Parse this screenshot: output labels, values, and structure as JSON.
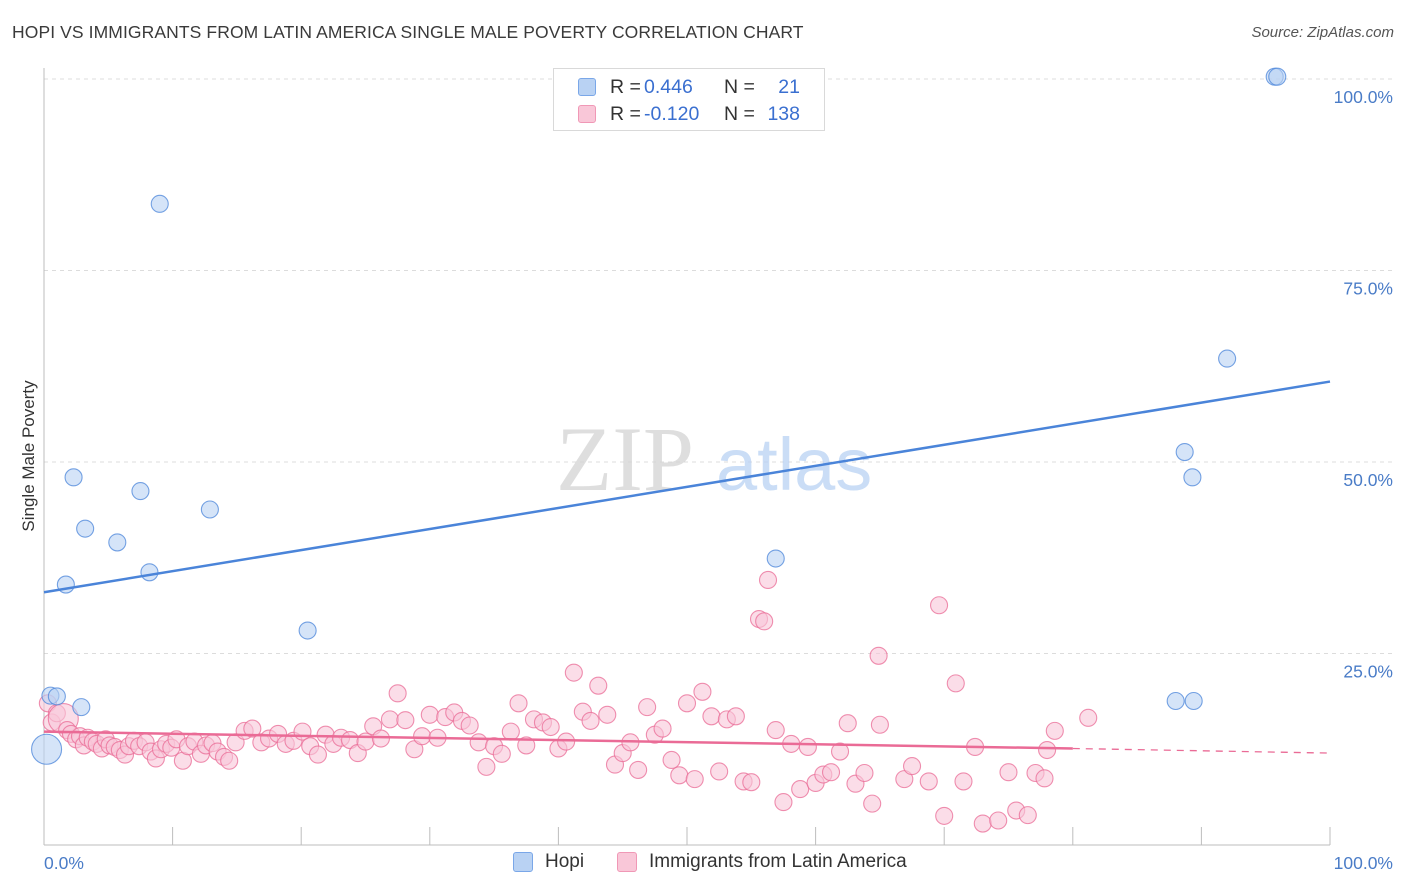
{
  "title": "HOPI VS IMMIGRANTS FROM LATIN AMERICA SINGLE MALE POVERTY CORRELATION CHART",
  "source": "Source: ZipAtlas.com",
  "watermark": {
    "zip": "ZIP",
    "atlas": "atlas"
  },
  "legend": {
    "rows": [
      {
        "r_label": "R =",
        "r_value": "0.446",
        "n_label": "N =",
        "n_value": "21",
        "color": "#7aa7e8",
        "fill": "#b9d2f3"
      },
      {
        "r_label": "R =",
        "r_value": "-0.120",
        "n_label": "N =",
        "n_value": "138",
        "color": "#f098b6",
        "fill": "#f9c7d8"
      }
    ]
  },
  "bottom_legend": [
    {
      "label": "Hopi",
      "color": "#7aa7e8",
      "fill": "#b9d2f3"
    },
    {
      "label": "Immigrants from Latin America",
      "color": "#f098b6",
      "fill": "#f9c7d8"
    }
  ],
  "chart_data": {
    "type": "scatter",
    "title": "HOPI VS IMMIGRANTS FROM LATIN AMERICA SINGLE MALE POVERTY CORRELATION CHART",
    "xlabel": "",
    "ylabel": "Single Male Poverty",
    "xlim": [
      0,
      100
    ],
    "ylim": [
      0,
      100
    ],
    "x_tick_labels": [
      "0.0%",
      "100.0%"
    ],
    "y_ticks": [
      25,
      50,
      75,
      100
    ],
    "y_tick_labels": [
      "25.0%",
      "50.0%",
      "75.0%",
      "100.0%"
    ],
    "grid": true,
    "series": [
      {
        "name": "Hopi",
        "color": "#4a84d9",
        "fill": "#b9d2f3",
        "trend": {
          "x0": 0,
          "y0": 33.0,
          "x1": 100,
          "y1": 60.5,
          "style": "solid"
        },
        "points": [
          [
            0.2,
            12.5
          ],
          [
            0.5,
            19.5
          ],
          [
            1.0,
            19.4
          ],
          [
            1.7,
            34.0
          ],
          [
            2.3,
            48.0
          ],
          [
            2.9,
            18.0
          ],
          [
            3.2,
            41.3
          ],
          [
            5.7,
            39.5
          ],
          [
            7.5,
            46.2
          ],
          [
            8.2,
            35.6
          ],
          [
            9.0,
            83.7
          ],
          [
            12.9,
            43.8
          ],
          [
            20.5,
            28.0
          ],
          [
            56.9,
            37.4
          ],
          [
            88.0,
            18.8
          ],
          [
            89.4,
            18.8
          ],
          [
            88.7,
            51.3
          ],
          [
            89.3,
            48.0
          ],
          [
            92.0,
            63.5
          ],
          [
            95.7,
            100.3
          ],
          [
            95.9,
            100.3
          ]
        ],
        "big_points": [
          [
            0.2,
            12.5
          ]
        ]
      },
      {
        "name": "Immigrants from Latin America",
        "color": "#ea6b96",
        "fill": "#f9c7d8",
        "trend": {
          "x0": 0,
          "y0": 14.8,
          "x1": 80,
          "y1": 12.6,
          "x2": 100,
          "y2": 12.0,
          "style": "solid-then-dashed"
        },
        "points": [
          [
            0.3,
            18.5
          ],
          [
            0.6,
            16.0
          ],
          [
            1.0,
            17.2
          ],
          [
            1.5,
            16.5
          ],
          [
            1.8,
            15.0
          ],
          [
            2.1,
            14.5
          ],
          [
            2.5,
            13.8
          ],
          [
            2.8,
            14.2
          ],
          [
            3.1,
            13.0
          ],
          [
            3.4,
            14.0
          ],
          [
            3.8,
            13.5
          ],
          [
            4.1,
            13.2
          ],
          [
            4.5,
            12.6
          ],
          [
            4.8,
            13.8
          ],
          [
            5.1,
            13.0
          ],
          [
            5.5,
            12.8
          ],
          [
            5.9,
            12.4
          ],
          [
            6.3,
            11.8
          ],
          [
            6.6,
            12.9
          ],
          [
            7.0,
            13.6
          ],
          [
            7.4,
            12.9
          ],
          [
            7.9,
            13.4
          ],
          [
            8.3,
            12.2
          ],
          [
            8.7,
            11.3
          ],
          [
            9.1,
            12.5
          ],
          [
            9.5,
            13.2
          ],
          [
            9.9,
            12.7
          ],
          [
            10.3,
            13.8
          ],
          [
            10.8,
            11.0
          ],
          [
            11.2,
            12.9
          ],
          [
            11.7,
            13.5
          ],
          [
            12.2,
            11.9
          ],
          [
            12.6,
            13.0
          ],
          [
            13.1,
            13.3
          ],
          [
            13.5,
            12.2
          ],
          [
            14.0,
            11.5
          ],
          [
            14.4,
            11.0
          ],
          [
            14.9,
            13.4
          ],
          [
            15.6,
            14.9
          ],
          [
            16.2,
            15.2
          ],
          [
            16.9,
            13.4
          ],
          [
            17.5,
            13.9
          ],
          [
            18.2,
            14.5
          ],
          [
            18.8,
            13.2
          ],
          [
            19.4,
            13.6
          ],
          [
            20.1,
            14.8
          ],
          [
            20.7,
            12.9
          ],
          [
            21.3,
            11.8
          ],
          [
            21.9,
            14.4
          ],
          [
            22.5,
            13.2
          ],
          [
            23.1,
            14.0
          ],
          [
            23.8,
            13.7
          ],
          [
            24.4,
            12.0
          ],
          [
            25.0,
            13.5
          ],
          [
            25.6,
            15.5
          ],
          [
            26.2,
            13.9
          ],
          [
            26.9,
            16.4
          ],
          [
            27.5,
            19.8
          ],
          [
            28.1,
            16.3
          ],
          [
            28.8,
            12.5
          ],
          [
            29.4,
            14.2
          ],
          [
            30.0,
            17.0
          ],
          [
            30.6,
            14.0
          ],
          [
            31.2,
            16.7
          ],
          [
            31.9,
            17.3
          ],
          [
            32.5,
            16.2
          ],
          [
            33.1,
            15.6
          ],
          [
            33.8,
            13.4
          ],
          [
            34.4,
            10.2
          ],
          [
            35.0,
            12.9
          ],
          [
            35.6,
            11.9
          ],
          [
            36.3,
            14.8
          ],
          [
            36.9,
            18.5
          ],
          [
            37.5,
            13.0
          ],
          [
            38.1,
            16.4
          ],
          [
            38.8,
            16.0
          ],
          [
            39.4,
            15.4
          ],
          [
            40.0,
            12.6
          ],
          [
            40.6,
            13.5
          ],
          [
            41.2,
            22.5
          ],
          [
            41.9,
            17.4
          ],
          [
            42.5,
            16.2
          ],
          [
            43.1,
            20.8
          ],
          [
            43.8,
            17.0
          ],
          [
            44.4,
            10.5
          ],
          [
            45.0,
            12.0
          ],
          [
            45.6,
            13.4
          ],
          [
            46.2,
            9.8
          ],
          [
            46.9,
            18.0
          ],
          [
            47.5,
            14.4
          ],
          [
            48.1,
            15.2
          ],
          [
            48.8,
            11.1
          ],
          [
            49.4,
            9.1
          ],
          [
            50.0,
            18.5
          ],
          [
            50.6,
            8.6
          ],
          [
            51.2,
            20.0
          ],
          [
            51.9,
            16.8
          ],
          [
            52.5,
            9.6
          ],
          [
            53.1,
            16.4
          ],
          [
            53.8,
            16.8
          ],
          [
            54.4,
            8.3
          ],
          [
            55.0,
            8.2
          ],
          [
            55.6,
            29.5
          ],
          [
            56.0,
            29.2
          ],
          [
            56.3,
            34.6
          ],
          [
            56.9,
            15.0
          ],
          [
            57.5,
            5.6
          ],
          [
            58.1,
            13.2
          ],
          [
            58.8,
            7.3
          ],
          [
            59.4,
            12.8
          ],
          [
            60.0,
            8.1
          ],
          [
            60.6,
            9.2
          ],
          [
            61.2,
            9.5
          ],
          [
            61.9,
            12.2
          ],
          [
            62.5,
            15.9
          ],
          [
            63.1,
            8.0
          ],
          [
            63.8,
            9.4
          ],
          [
            64.4,
            5.4
          ],
          [
            65.0,
            15.7
          ],
          [
            64.9,
            24.7
          ],
          [
            66.9,
            8.6
          ],
          [
            67.5,
            10.3
          ],
          [
            68.8,
            8.3
          ],
          [
            69.6,
            31.3
          ],
          [
            70.9,
            21.1
          ],
          [
            70.0,
            3.8
          ],
          [
            71.5,
            8.3
          ],
          [
            72.4,
            12.8
          ],
          [
            73.0,
            2.8
          ],
          [
            74.2,
            3.2
          ],
          [
            75.0,
            9.5
          ],
          [
            75.6,
            4.5
          ],
          [
            76.5,
            3.9
          ],
          [
            77.1,
            9.4
          ],
          [
            78.0,
            12.4
          ],
          [
            77.8,
            8.7
          ],
          [
            78.6,
            14.9
          ],
          [
            81.2,
            16.6
          ]
        ],
        "big_points": [
          [
            1.5,
            16.5
          ]
        ]
      }
    ]
  }
}
